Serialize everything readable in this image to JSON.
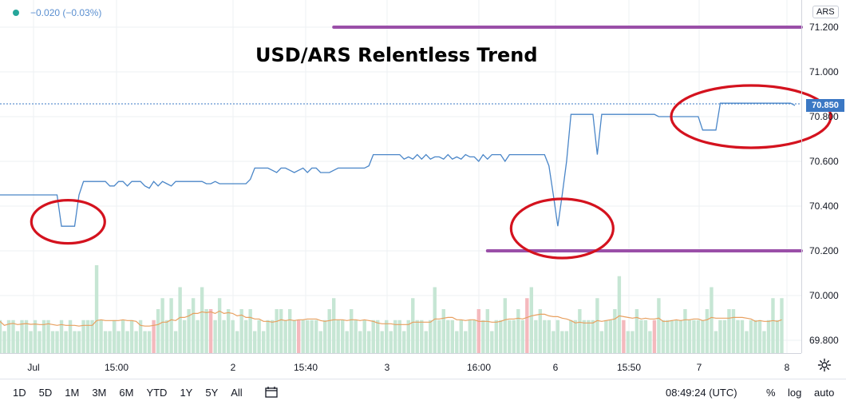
{
  "legend": {
    "change": "−0.020 (−0.03%)"
  },
  "currency": "ARS",
  "current_price_label": "70.850",
  "chart_data": {
    "type": "line",
    "title": "USD/ARS Relentless Trend",
    "y_ticks": [
      "71.200",
      "71.000",
      "70.800",
      "70.600",
      "70.400",
      "70.200",
      "70.000",
      "69.800"
    ],
    "ylim": [
      69.76,
      71.25
    ],
    "x_ticks": [
      "Jul",
      "15:00",
      "2",
      "15:40",
      "3",
      "16:00",
      "6",
      "15:50",
      "7",
      "8"
    ],
    "series": [
      {
        "values": [
          70.45,
          70.45,
          70.45,
          70.45,
          70.45,
          70.45,
          70.45,
          70.45,
          70.45,
          70.45,
          70.45,
          70.45,
          70.45,
          70.45,
          70.31,
          70.31,
          70.31,
          70.31,
          70.45,
          70.51,
          70.51,
          70.51,
          70.51,
          70.51,
          70.51,
          70.49,
          70.49,
          70.51,
          70.51,
          70.49,
          70.51,
          70.51,
          70.51,
          70.49,
          70.48,
          70.51,
          70.49,
          70.51,
          70.5,
          70.49,
          70.51,
          70.51,
          70.51,
          70.51,
          70.51,
          70.51,
          70.51,
          70.5,
          70.5,
          70.51,
          70.5,
          70.5,
          70.5,
          70.5,
          70.5,
          70.5,
          70.5,
          70.52,
          70.57,
          70.57,
          70.57,
          70.57,
          70.56,
          70.55,
          70.57,
          70.57,
          70.56,
          70.55,
          70.56,
          70.57,
          70.55,
          70.57,
          70.57,
          70.55,
          70.55,
          70.55,
          70.56,
          70.57,
          70.57,
          70.57,
          70.57,
          70.57,
          70.57,
          70.57,
          70.58,
          70.63,
          70.63,
          70.63,
          70.63,
          70.63,
          70.63,
          70.63,
          70.61,
          70.62,
          70.61,
          70.63,
          70.61,
          70.63,
          70.61,
          70.62,
          70.62,
          70.61,
          70.63,
          70.61,
          70.62,
          70.61,
          70.63,
          70.62,
          70.62,
          70.6,
          70.63,
          70.61,
          70.63,
          70.63,
          70.63,
          70.6,
          70.63,
          70.63,
          70.63,
          70.63,
          70.63,
          70.63,
          70.63,
          70.63,
          70.63,
          70.58,
          70.45,
          70.31,
          70.45,
          70.6,
          70.81,
          70.81,
          70.81,
          70.81,
          70.81,
          70.81,
          70.63,
          70.81,
          70.81,
          70.81,
          70.81,
          70.81,
          70.81,
          70.81,
          70.81,
          70.81,
          70.81,
          70.81,
          70.81,
          70.81,
          70.8,
          70.8,
          70.8,
          70.8,
          70.8,
          70.8,
          70.8,
          70.8,
          70.8,
          70.8,
          70.74,
          70.74,
          70.74,
          70.74,
          70.86,
          70.86,
          70.86,
          70.86,
          70.86,
          70.86,
          70.86,
          70.86,
          70.86,
          70.86,
          70.86,
          70.86,
          70.86,
          70.86,
          70.86,
          70.86,
          70.86,
          70.85
        ]
      }
    ],
    "annotations": [
      {
        "type": "horizontal-line",
        "value": 71.2,
        "x_from_index": 76
      },
      {
        "type": "horizontal-line",
        "value": 70.2,
        "x_from_index": 111
      }
    ],
    "volume": {
      "values": [
        3,
        2,
        3,
        3,
        2,
        3,
        3,
        2,
        3,
        2,
        3,
        3,
        2,
        2,
        3,
        2,
        3,
        2,
        2,
        3,
        3,
        3,
        8,
        3,
        2,
        2,
        3,
        2,
        3,
        2,
        3,
        2,
        3,
        2,
        2,
        3,
        4,
        5,
        3,
        5,
        2,
        6,
        3,
        4,
        5,
        3,
        6,
        4,
        4,
        3,
        5,
        3,
        4,
        3,
        2,
        4,
        3,
        4,
        2,
        3,
        2,
        3,
        3,
        4,
        4,
        3,
        4,
        3,
        3,
        3,
        3,
        3,
        3,
        2,
        3,
        4,
        5,
        3,
        3,
        2,
        4,
        3,
        2,
        3,
        2,
        3,
        3,
        2,
        3,
        2,
        3,
        3,
        2,
        3,
        5,
        3,
        3,
        2,
        3,
        6,
        3,
        4,
        3,
        3,
        2,
        3,
        2,
        3,
        3,
        4,
        3,
        4,
        2,
        3,
        3,
        5,
        3,
        3,
        4,
        3,
        5,
        6,
        3,
        4,
        3,
        3,
        2,
        3,
        2,
        2,
        3,
        3,
        4,
        3,
        3,
        3,
        5,
        2,
        3,
        3,
        4,
        7,
        3,
        2,
        2,
        4,
        3,
        3,
        2,
        3,
        5,
        3,
        3,
        3,
        3,
        3,
        4,
        3,
        3,
        3,
        3,
        4,
        6,
        2,
        3,
        3,
        4,
        4,
        3,
        3,
        2,
        3,
        3,
        3,
        2,
        3,
        5,
        3,
        5
      ],
      "down_bars": [
        35,
        48,
        68,
        109,
        120,
        142,
        149
      ]
    }
  },
  "toolbar": {
    "timeframes": [
      "1D",
      "5D",
      "1M",
      "3M",
      "6M",
      "YTD",
      "1Y",
      "5Y",
      "All"
    ],
    "clock": "08:49:24 (UTC)",
    "percent": "%",
    "log": "log",
    "auto": "auto"
  },
  "colors": {
    "line": "#4a86c8",
    "grid": "#edf0f3",
    "annotation": "#9a4fa8",
    "ellipse": "#d4121e",
    "volume_up": "#c6e6d4",
    "volume_down": "#f4b9bd",
    "volume_ma": "#e8a060"
  }
}
